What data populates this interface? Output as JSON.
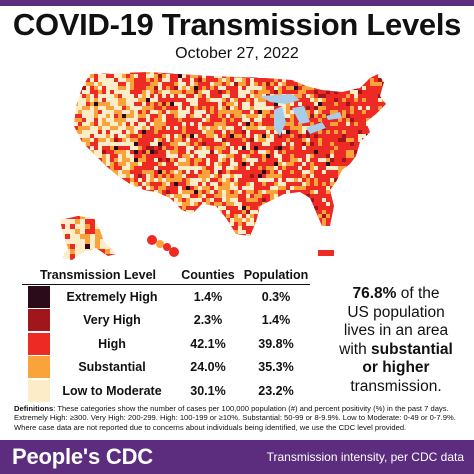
{
  "title": "COVID-19 Transmission Levels",
  "date": "October 27, 2022",
  "legend": {
    "headers": {
      "level": "Transmission Level",
      "counties": "Counties",
      "population": "Population"
    },
    "rows": [
      {
        "level": "Extremely High",
        "counties": "1.4%",
        "population": "0.3%",
        "color": "#2b0a1a"
      },
      {
        "level": "Very High",
        "counties": "2.3%",
        "population": "1.4%",
        "color": "#a0161b"
      },
      {
        "level": "High",
        "counties": "42.1%",
        "population": "39.8%",
        "color": "#ee2a24"
      },
      {
        "level": "Substantial",
        "counties": "24.0%",
        "population": "35.3%",
        "color": "#f9a33a"
      },
      {
        "level": "Low to Moderate",
        "counties": "30.1%",
        "population": "23.2%",
        "color": "#fdecc8"
      }
    ]
  },
  "callout": {
    "percent": "76.8%",
    "line1_rest": " of the",
    "line2": "US population",
    "line3": "lives in an area",
    "line4_pre": "with ",
    "line4_bold": "substantial",
    "line5": "or higher",
    "line6": "transmission."
  },
  "definitions": {
    "label": "Definitions",
    "text": ": These categories show the number of cases per 100,000 population (#) and percent positivity (%) in the past 7 days. Extremely High: ≥300. Very High: 200-299. High: 100-199 or ≥10%. Substantial: 50-99 or 8-9.9%. Low to Moderate: 0-49 or 0-7.9%. Where case data are not reported due to concerns about individuals being identified, we use the CDC level provided."
  },
  "footer": {
    "brand": "People's CDC",
    "tagline": "Transmission intensity, per CDC data"
  },
  "colors": {
    "brand": "#5c2d7e",
    "lakes": "#a9cde8",
    "border": "#ffffff"
  }
}
